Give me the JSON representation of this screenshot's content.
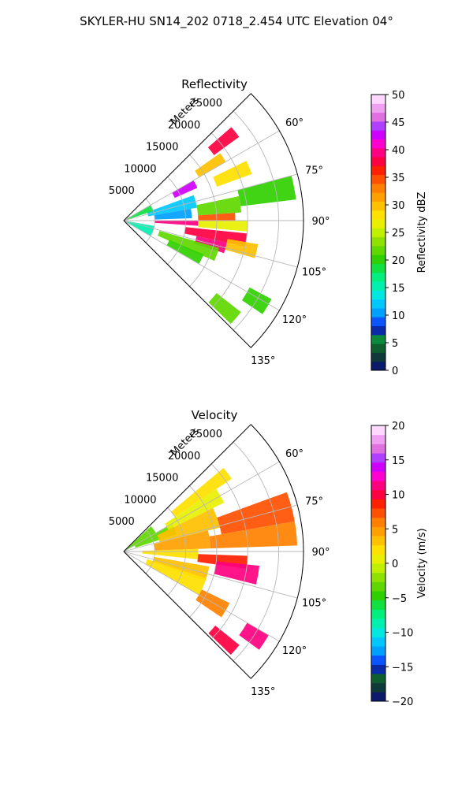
{
  "figure_title": "SKYLER-HU  SN14_202  0718_2.454 UTC Elevation 04°",
  "chart_data": [
    {
      "type": "heatmap",
      "subtype": "polar-sector",
      "title": "Reflectivity",
      "radial_axis_label": "Meters",
      "radial_ticks": [
        5000,
        10000,
        15000,
        20000,
        25000
      ],
      "radial_tick_labels": [
        "5000",
        "10000",
        "15000",
        "20000",
        "25000"
      ],
      "r_max": 29000,
      "azimuth_range": [
        45,
        135
      ],
      "azimuth_ticks": [
        60,
        75,
        90,
        105,
        120,
        135
      ],
      "azimuth_tick_labels": [
        "60°",
        "75°",
        "90°",
        "105°",
        "120°",
        "135°"
      ],
      "grid": true,
      "colorbar": {
        "label": "Reflectivity dBZ",
        "vmin": 0,
        "vmax": 50,
        "ticks": [
          0,
          5,
          10,
          15,
          20,
          25,
          30,
          35,
          40,
          45,
          50
        ],
        "tick_labels": [
          "0",
          "5",
          "10",
          "15",
          "20",
          "25",
          "30",
          "35",
          "40",
          "45",
          "50"
        ],
        "colors": [
          "#0b1a6b",
          "#103a3a",
          "#0f5e2e",
          "#0c8a3c",
          "#0a2aa8",
          "#0a55ff",
          "#00a0ff",
          "#00c8ff",
          "#00e8e0",
          "#00f0b0",
          "#00f080",
          "#10e040",
          "#30d000",
          "#60d800",
          "#90e000",
          "#c0f000",
          "#e8f000",
          "#ffe000",
          "#ffc000",
          "#ffa000",
          "#ff8000",
          "#ff5000",
          "#ff2000",
          "#ff0040",
          "#ff0080",
          "#ff00d0",
          "#d000ff",
          "#b040ff",
          "#e070e0",
          "#f0a0f0",
          "#ffd8ff"
        ]
      },
      "cells": [
        {
          "az_range": [
            49,
            54
          ],
          "r_range": [
            18000,
            23000
          ],
          "value": 38
        },
        {
          "az_range": [
            60,
            66
          ],
          "r_range": [
            9000,
            13000
          ],
          "value": 42
        },
        {
          "az_range": [
            55,
            60
          ],
          "r_range": [
            14000,
            19000
          ],
          "value": 30
        },
        {
          "az_range": [
            64,
            70
          ],
          "r_range": [
            16000,
            22000
          ],
          "value": 28
        },
        {
          "az_range": [
            70,
            80
          ],
          "r_range": [
            4000,
            12000
          ],
          "value": 12
        },
        {
          "az_range": [
            80,
            88
          ],
          "r_range": [
            5000,
            11000
          ],
          "value": 10
        },
        {
          "az_range": [
            78,
            86
          ],
          "r_range": [
            12000,
            19000
          ],
          "value": 22
        },
        {
          "az_range": [
            75,
            83
          ],
          "r_range": [
            19000,
            28000
          ],
          "value": 20
        },
        {
          "az_range": [
            86,
            90
          ],
          "r_range": [
            12000,
            18000
          ],
          "value": 34
        },
        {
          "az_range": [
            90,
            94
          ],
          "r_range": [
            5000,
            12000
          ],
          "value": 40
        },
        {
          "az_range": [
            90,
            95
          ],
          "r_range": [
            12000,
            20000
          ],
          "value": 26
        },
        {
          "az_range": [
            96,
            102
          ],
          "r_range": [
            10000,
            20000
          ],
          "value": 38
        },
        {
          "az_range": [
            102,
            108
          ],
          "r_range": [
            12000,
            17000
          ],
          "value": 40
        },
        {
          "az_range": [
            100,
            106
          ],
          "r_range": [
            17000,
            22000
          ],
          "value": 30
        },
        {
          "az_range": [
            106,
            114
          ],
          "r_range": [
            6000,
            16000
          ],
          "value": 22
        },
        {
          "az_range": [
            113,
            120
          ],
          "r_range": [
            8000,
            14000
          ],
          "value": 20
        },
        {
          "az_range": [
            60,
            72
          ],
          "r_range": [
            500,
            5000
          ],
          "value": 18
        },
        {
          "az_range": [
            100,
            120
          ],
          "r_range": [
            500,
            5000
          ],
          "value": 16
        },
        {
          "az_range": [
            118,
            124
          ],
          "r_range": [
            23000,
            27000
          ],
          "value": 20
        },
        {
          "az_range": [
            128,
            134
          ],
          "r_range": [
            19000,
            24000
          ],
          "value": 22
        }
      ]
    },
    {
      "type": "heatmap",
      "subtype": "polar-sector",
      "title": "Velocity",
      "radial_axis_label": "Meters",
      "radial_ticks": [
        5000,
        10000,
        15000,
        20000,
        25000
      ],
      "radial_tick_labels": [
        "5000",
        "10000",
        "15000",
        "20000",
        "25000"
      ],
      "r_max": 29000,
      "azimuth_range": [
        45,
        135
      ],
      "azimuth_ticks": [
        60,
        75,
        90,
        105,
        120,
        135
      ],
      "azimuth_tick_labels": [
        "60°",
        "75°",
        "90°",
        "105°",
        "120°",
        "135°"
      ],
      "grid": true,
      "colorbar": {
        "label": "Velocity (m/s)",
        "vmin": -20,
        "vmax": 20,
        "ticks": [
          -20,
          -15,
          -10,
          -5,
          0,
          5,
          10,
          15,
          20
        ],
        "tick_labels": [
          "−20",
          "−15",
          "−10",
          "−5",
          "0",
          "5",
          "10",
          "15",
          "20"
        ],
        "colors": [
          "#0b1a6b",
          "#103a3a",
          "#0f5e2e",
          "#0a2aa8",
          "#0a55ff",
          "#00a0ff",
          "#00c8ff",
          "#00e8e0",
          "#00f0b0",
          "#00f080",
          "#10e040",
          "#30d000",
          "#60d800",
          "#90e000",
          "#c0f000",
          "#e8f000",
          "#ffe000",
          "#ffc000",
          "#ffa000",
          "#ff8000",
          "#ff5000",
          "#ff2000",
          "#ff0040",
          "#ff0080",
          "#ff00d0",
          "#d000ff",
          "#b040ff",
          "#e070e0",
          "#f0a0f0",
          "#ffd8ff"
        ]
      },
      "cells": [
        {
          "az_range": [
            47,
            62
          ],
          "r_range": [
            500,
            6000
          ],
          "value": -3
        },
        {
          "az_range": [
            60,
            72
          ],
          "r_range": [
            2000,
            9000
          ],
          "value": -4
        },
        {
          "az_range": [
            50,
            56
          ],
          "r_range": [
            10000,
            21000
          ],
          "value": 2
        },
        {
          "az_range": [
            56,
            64
          ],
          "r_range": [
            8000,
            18000
          ],
          "value": 0
        },
        {
          "az_range": [
            64,
            76
          ],
          "r_range": [
            6000,
            16000
          ],
          "value": 3
        },
        {
          "az_range": [
            76,
            88
          ],
          "r_range": [
            5000,
            14000
          ],
          "value": 4
        },
        {
          "az_range": [
            70,
            80
          ],
          "r_range": [
            16000,
            28000
          ],
          "value": 7
        },
        {
          "az_range": [
            80,
            88
          ],
          "r_range": [
            14000,
            28000
          ],
          "value": 6
        },
        {
          "az_range": [
            88,
            96
          ],
          "r_range": [
            3000,
            12000
          ],
          "value": 2
        },
        {
          "az_range": [
            92,
            98
          ],
          "r_range": [
            12000,
            20000
          ],
          "value": 8
        },
        {
          "az_range": [
            96,
            104
          ],
          "r_range": [
            15000,
            22000
          ],
          "value": 11
        },
        {
          "az_range": [
            100,
            110
          ],
          "r_range": [
            5000,
            14000
          ],
          "value": 3
        },
        {
          "az_range": [
            108,
            120
          ],
          "r_range": [
            4000,
            14000
          ],
          "value": 2
        },
        {
          "az_range": [
            116,
            124
          ],
          "r_range": [
            14000,
            19000
          ],
          "value": 6
        },
        {
          "az_range": [
            120,
            126
          ],
          "r_range": [
            23000,
            27000
          ],
          "value": 11
        },
        {
          "az_range": [
            129,
            134
          ],
          "r_range": [
            19000,
            24000
          ],
          "value": 10
        }
      ]
    }
  ]
}
